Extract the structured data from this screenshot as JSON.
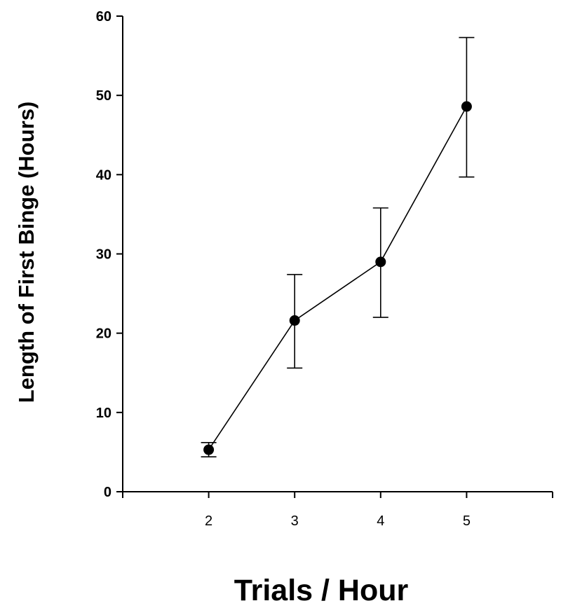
{
  "chart_data": {
    "type": "line",
    "title": "",
    "xlabel": "Trials / Hour",
    "ylabel": "Length of First Binge (Hours)",
    "xlim": [
      1,
      6
    ],
    "ylim": [
      0,
      60
    ],
    "x_ticks": [
      2,
      3,
      4,
      5
    ],
    "y_ticks": [
      0,
      10,
      20,
      30,
      40,
      50,
      60
    ],
    "grid": false,
    "legend": "none",
    "series": [
      {
        "x": [
          2,
          3,
          4,
          5
        ],
        "y": [
          5.3,
          21.6,
          29.0,
          48.6
        ],
        "error_low": [
          4.4,
          15.6,
          22.0,
          39.7
        ],
        "error_high": [
          6.2,
          27.4,
          35.8,
          57.3
        ],
        "color": "#000000",
        "marker": "filled-circle"
      }
    ]
  }
}
